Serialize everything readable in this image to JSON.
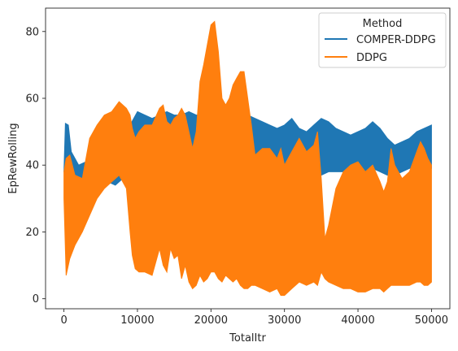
{
  "chart_data": {
    "type": "area",
    "xlabel": "TotalItr",
    "ylabel": "EpRewRolling",
    "xlim": [
      -2500,
      52500
    ],
    "ylim": [
      -3,
      87
    ],
    "xticks": [
      0,
      10000,
      20000,
      30000,
      40000,
      50000
    ],
    "xtick_labels": [
      "0",
      "10000",
      "20000",
      "30000",
      "40000",
      "50000"
    ],
    "yticks": [
      0,
      20,
      40,
      60,
      80
    ],
    "ytick_labels": [
      "0",
      "20",
      "40",
      "60",
      "80"
    ],
    "grid": false,
    "legend": {
      "title": "Method",
      "position": "top-right"
    },
    "series": [
      {
        "name": "COMPER-DDPG",
        "color": "#1f77b4",
        "x": [
          0,
          200,
          600,
          1000,
          2000,
          3000,
          4000,
          5000,
          6000,
          7000,
          8000,
          9000,
          9500,
          10000,
          11000,
          12000,
          13000,
          14000,
          15000,
          16000,
          17000,
          18000,
          19000,
          20000,
          21000,
          22000,
          23000,
          24000,
          25000,
          26000,
          27000,
          28000,
          29000,
          30000,
          31000,
          32000,
          33000,
          34000,
          35000,
          36000,
          37000,
          38000,
          39000,
          40000,
          41000,
          42000,
          43000,
          44000,
          45000,
          46000,
          47000,
          48000,
          49000,
          50000
        ],
        "upper": [
          38,
          52.5,
          52,
          44,
          40,
          41,
          44,
          46,
          48,
          50,
          49,
          52,
          54,
          56,
          55,
          54,
          55,
          56,
          55,
          55,
          56,
          55,
          55,
          56,
          55,
          55,
          55,
          54,
          55,
          54,
          53,
          52,
          51,
          52,
          54,
          51,
          50,
          52,
          54,
          53,
          51,
          50,
          49,
          50,
          51,
          53,
          51,
          48,
          46,
          47,
          48,
          50,
          51,
          52
        ],
        "lower": [
          38,
          37,
          37,
          36,
          35,
          36,
          35,
          36,
          35,
          34,
          36,
          36,
          37,
          39,
          40,
          40,
          41,
          42,
          40,
          41,
          42,
          41,
          40,
          40,
          41,
          41,
          40,
          40,
          39,
          38,
          37,
          37,
          37,
          38,
          39,
          38,
          37,
          37,
          37,
          38,
          38,
          38,
          38,
          37,
          38,
          39,
          38,
          37,
          37,
          38,
          39,
          39,
          39,
          39
        ]
      },
      {
        "name": "DDPG",
        "color": "#ff7f0e",
        "x": [
          0,
          300,
          800,
          1500,
          2500,
          3500,
          4500,
          5500,
          6500,
          7500,
          8500,
          9000,
          9300,
          9700,
          10200,
          11000,
          12000,
          13000,
          13500,
          14000,
          14500,
          15000,
          15500,
          16000,
          16500,
          17000,
          17500,
          18000,
          18500,
          19000,
          19500,
          20000,
          20500,
          21000,
          21500,
          22000,
          22500,
          23000,
          23500,
          24000,
          24500,
          25000,
          25500,
          26000,
          27000,
          28000,
          29000,
          29500,
          30000,
          31000,
          32000,
          33000,
          34000,
          34500,
          35000,
          35500,
          36000,
          37000,
          38000,
          39000,
          40000,
          41000,
          42000,
          43000,
          43500,
          44000,
          44500,
          45000,
          46000,
          47000,
          48000,
          48500,
          49000,
          49500,
          50000
        ],
        "upper": [
          38,
          42,
          43,
          37,
          36,
          48,
          52,
          55,
          56,
          59,
          57,
          55,
          51,
          48,
          50,
          52,
          52,
          57,
          58,
          53,
          52,
          54,
          55,
          57,
          55,
          50,
          45,
          50,
          65,
          70,
          76,
          82,
          83,
          74,
          60,
          58,
          60,
          64,
          66,
          68,
          68,
          60,
          52,
          43,
          45,
          45,
          42,
          45,
          40,
          44,
          48,
          44,
          46,
          50,
          36,
          18,
          22,
          33,
          38,
          40,
          41,
          38,
          40,
          35,
          32,
          35,
          45,
          40,
          36,
          38,
          44,
          47,
          45,
          42,
          40
        ],
        "lower": [
          30,
          7,
          12,
          16,
          20,
          25,
          30,
          33,
          35,
          37,
          33,
          20,
          13,
          9,
          8,
          8,
          7,
          15,
          10,
          8,
          15,
          12,
          13,
          6,
          10,
          5,
          3,
          4,
          7,
          5,
          6,
          8,
          8,
          6,
          5,
          7,
          6,
          5,
          6,
          4,
          3,
          3,
          4,
          4,
          3,
          2,
          3,
          1,
          1,
          3,
          5,
          4,
          5,
          4,
          8,
          6,
          5,
          4,
          3,
          3,
          2,
          2,
          3,
          3,
          2,
          3,
          4,
          4,
          4,
          4,
          5,
          5,
          4,
          4,
          5
        ]
      }
    ]
  }
}
